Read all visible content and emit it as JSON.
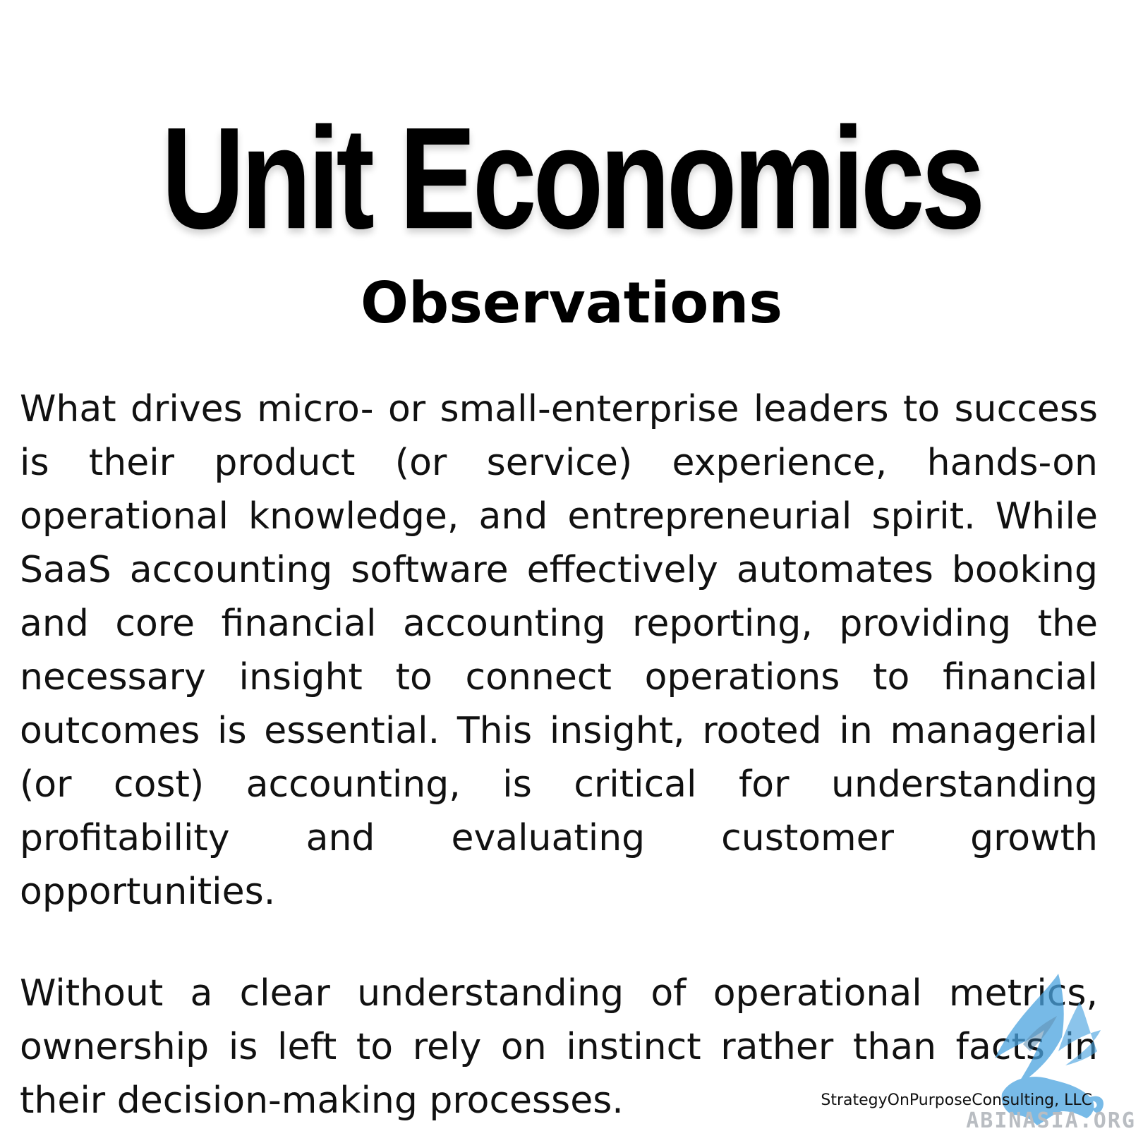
{
  "title": "Unit Economics",
  "subtitle": "Observations",
  "paragraphs": [
    "What drives micro- or small-enterprise leaders to success is their product (or service) experience, hands-on operational knowledge, and entrepreneurial spirit. While SaaS accounting software effectively automates booking and core financial accounting reporting, providing the necessary insight to connect operations to financial outcomes is essential. This insight, rooted in managerial (or cost) accounting, is critical for understanding profitability and evaluating customer growth opportunities.",
    "Without a clear understanding of operational metrics, ownership is left to rely on instinct rather than facts in their decision-making processes."
  ],
  "footer": {
    "credit": "StrategyOnPurposeConsulting, LLC",
    "watermark": "ABINASIA.ORG"
  },
  "colors": {
    "background": "#ffffff",
    "text": "#000000",
    "logo": "#4aa3df",
    "watermark": "#b9bdc2"
  },
  "icons": {
    "logo": "winged-lion-logo"
  }
}
